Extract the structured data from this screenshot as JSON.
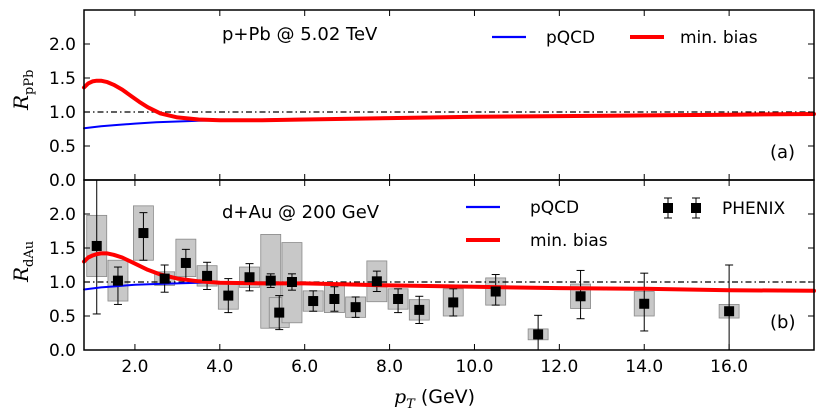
{
  "chart_data": [
    {
      "type": "line",
      "panel_label": "(a)",
      "annotation": "p+Pb @ 5.02 TeV",
      "ylabel": "R",
      "ylabel_sub": "pPb",
      "xlim": [
        0.8,
        18.0
      ],
      "ylim": [
        0.0,
        2.5
      ],
      "yticks": [
        0.0,
        0.5,
        1.0,
        1.5,
        2.0
      ],
      "ytick_labels": [
        "0.0",
        "0.5",
        "1.0",
        "1.5",
        "2.0"
      ],
      "reference_line": 1.0,
      "legend": [
        "pQCD",
        "min. bias"
      ],
      "series": [
        {
          "name": "pQCD",
          "color": "#0000ff",
          "x": [
            0.8,
            1.2,
            1.6,
            2.0,
            2.5,
            3.0,
            3.5,
            4.0,
            5.0,
            6.0,
            8.0,
            10.0,
            12.0,
            14.0,
            16.0,
            18.0
          ],
          "y": [
            0.76,
            0.79,
            0.81,
            0.83,
            0.85,
            0.86,
            0.87,
            0.88,
            0.89,
            0.9,
            0.91,
            0.93,
            0.94,
            0.95,
            0.96,
            0.97
          ]
        },
        {
          "name": "min. bias",
          "color": "#ff0000",
          "x": [
            0.8,
            0.9,
            1.0,
            1.1,
            1.2,
            1.35,
            1.5,
            1.7,
            1.9,
            2.1,
            2.3,
            2.6,
            3.0,
            3.5,
            4.0,
            5.0,
            6.0,
            8.0,
            10.0,
            12.0,
            14.0,
            16.0,
            18.0
          ],
          "y": [
            1.36,
            1.42,
            1.45,
            1.46,
            1.46,
            1.44,
            1.4,
            1.33,
            1.24,
            1.15,
            1.07,
            0.98,
            0.92,
            0.89,
            0.88,
            0.88,
            0.89,
            0.91,
            0.93,
            0.94,
            0.95,
            0.96,
            0.97
          ]
        }
      ]
    },
    {
      "type": "line",
      "panel_label": "(b)",
      "annotation": "d+Au @ 200 GeV",
      "ylabel": "R",
      "ylabel_sub": "dAu",
      "xlabel": "p",
      "xlabel_sub": "T",
      "xlabel_unit": "(GeV)",
      "xlim": [
        0.8,
        18.0
      ],
      "ylim": [
        0.0,
        2.5
      ],
      "yticks": [
        0.0,
        0.5,
        1.0,
        1.5,
        2.0
      ],
      "ytick_labels": [
        "0.0",
        "0.5",
        "1.0",
        "1.5",
        "2.0"
      ],
      "xticks": [
        2,
        4,
        6,
        8,
        10,
        12,
        14,
        16
      ],
      "xtick_labels": [
        "2.0",
        "4.0",
        "6.0",
        "8.0",
        "10.0",
        "12.0",
        "14.0",
        "16.0"
      ],
      "reference_line": 1.0,
      "legend": [
        "pQCD",
        "min. bias",
        "PHENIX"
      ],
      "series": [
        {
          "name": "pQCD",
          "color": "#0000ff",
          "x": [
            0.8,
            1.2,
            1.6,
            2.0,
            2.5,
            3.0,
            3.5,
            4.0,
            4.5,
            5.0,
            6.0,
            8.0,
            10.0,
            12.0,
            14.0,
            16.0,
            18.0
          ],
          "y": [
            0.89,
            0.92,
            0.94,
            0.96,
            0.97,
            0.98,
            0.99,
            0.995,
            0.99,
            0.985,
            0.97,
            0.95,
            0.93,
            0.91,
            0.9,
            0.88,
            0.87
          ]
        },
        {
          "name": "min. bias",
          "color": "#ff0000",
          "x": [
            0.8,
            0.9,
            1.0,
            1.1,
            1.2,
            1.35,
            1.5,
            1.7,
            1.9,
            2.1,
            2.3,
            2.6,
            3.0,
            3.5,
            4.0,
            5.0,
            6.0,
            8.0,
            10.0,
            12.0,
            14.0,
            16.0,
            18.0
          ],
          "y": [
            1.3,
            1.36,
            1.39,
            1.41,
            1.42,
            1.42,
            1.4,
            1.36,
            1.3,
            1.24,
            1.18,
            1.11,
            1.05,
            1.01,
            0.99,
            0.98,
            0.98,
            0.95,
            0.93,
            0.91,
            0.9,
            0.88,
            0.87
          ]
        }
      ],
      "points": {
        "name": "PHENIX",
        "x": [
          1.1,
          1.6,
          2.2,
          2.7,
          3.2,
          3.7,
          4.2,
          4.7,
          5.2,
          5.4,
          5.7,
          6.2,
          6.7,
          7.2,
          7.7,
          8.2,
          8.7,
          9.5,
          10.5,
          11.5,
          12.5,
          14.0,
          16.0
        ],
        "y": [
          1.53,
          1.02,
          1.72,
          1.05,
          1.28,
          1.09,
          0.8,
          1.07,
          1.02,
          0.55,
          1.0,
          0.72,
          0.75,
          0.63,
          1.01,
          0.75,
          0.59,
          0.7,
          0.86,
          0.23,
          0.79,
          0.68,
          0.57
        ],
        "err_lo": [
          1.0,
          0.35,
          0.4,
          0.2,
          0.25,
          0.2,
          0.25,
          0.2,
          0.1,
          0.25,
          0.12,
          0.15,
          0.18,
          0.15,
          0.15,
          0.2,
          0.2,
          0.2,
          0.2,
          0.3,
          0.33,
          0.4,
          0.6
        ],
        "err_hi": [
          1.0,
          0.2,
          0.3,
          0.2,
          0.2,
          0.2,
          0.25,
          0.2,
          0.1,
          0.25,
          0.12,
          0.15,
          0.18,
          0.15,
          0.15,
          0.15,
          0.2,
          0.2,
          0.25,
          0.28,
          0.38,
          0.45,
          0.68
        ],
        "sys_lo": [
          0.45,
          0.3,
          0.4,
          0.1,
          0.2,
          0.15,
          0.2,
          0.15,
          0.7,
          0.22,
          0.6,
          0.15,
          0.2,
          0.15,
          0.3,
          0.15,
          0.15,
          0.2,
          0.2,
          0.08,
          0.18,
          0.18,
          0.1
        ],
        "sys_hi": [
          0.45,
          0.3,
          0.4,
          0.1,
          0.35,
          0.15,
          0.2,
          0.15,
          0.68,
          0.22,
          0.58,
          0.15,
          0.2,
          0.15,
          0.3,
          0.15,
          0.15,
          0.2,
          0.2,
          0.08,
          0.18,
          0.18,
          0.1
        ]
      }
    }
  ],
  "colors": {
    "pqcd": "#0000ff",
    "minbias": "#ff0000",
    "marker": "#000000",
    "sys_fill": "#c8c8c8",
    "sys_stroke": "#8a8a8a"
  }
}
